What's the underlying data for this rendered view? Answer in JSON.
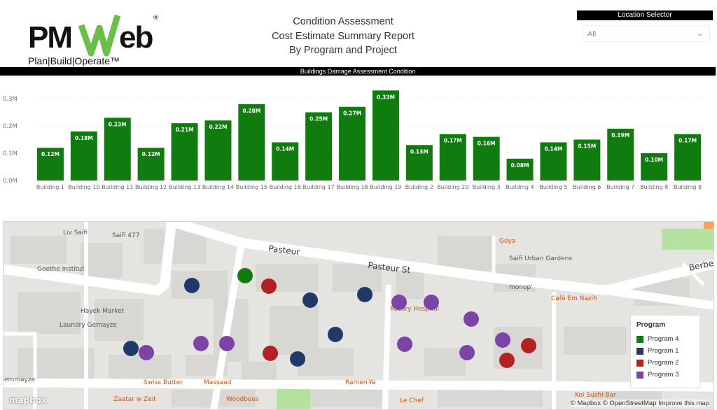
{
  "header": {
    "logo_text": "PMWeb",
    "logo_tagline": "Plan|Build|Operate™",
    "title_lines": [
      "Condition Assessment",
      "Cost Estimate Summary Report",
      "By Program and Project"
    ]
  },
  "location_selector": {
    "label": "Location Selector",
    "value": "All"
  },
  "banner": "Buildings Damage Assessment Condition",
  "chart_data": {
    "type": "bar",
    "categories": [
      "Building 1",
      "Building 10",
      "Building 11",
      "Building 12",
      "Building 13",
      "Building 14",
      "Building 15",
      "Building 16",
      "Building 17",
      "Building 18",
      "Building 19",
      "Building 2",
      "Building 20",
      "Building 3",
      "Building 4",
      "Building 5",
      "Building 6",
      "Building 7",
      "Building 8",
      "Building 9"
    ],
    "values": [
      0.12,
      0.18,
      0.23,
      0.12,
      0.21,
      0.22,
      0.28,
      0.14,
      0.25,
      0.27,
      0.33,
      0.13,
      0.17,
      0.16,
      0.08,
      0.14,
      0.15,
      0.19,
      0.1,
      0.17
    ],
    "data_labels": [
      "0.12M",
      "0.18M",
      "0.23M",
      "0.12M",
      "0.21M",
      "0.22M",
      "0.28M",
      "0.14M",
      "0.25M",
      "0.27M",
      "0.33M",
      "0.13M",
      "0.17M",
      "0.16M",
      "0.08M",
      "0.14M",
      "0.15M",
      "0.19M",
      "0.10M",
      "0.17M"
    ],
    "yticks": [
      "0.0M",
      "0.1M",
      "0.2M",
      "0.3M"
    ],
    "ylim": [
      0,
      0.3
    ],
    "unit": "M",
    "grid": true,
    "color": "#107c10"
  },
  "map": {
    "labels": [
      {
        "text": "Liv Saifi",
        "type": "poi"
      },
      {
        "text": "Saifi 477",
        "type": "poi"
      },
      {
        "text": "Goethe Institut",
        "type": "poi"
      },
      {
        "text": "Hayek Market",
        "type": "poi"
      },
      {
        "text": "Laundry Gemayze",
        "type": "poi"
      },
      {
        "text": "Gemmayze",
        "type": "poi"
      },
      {
        "text": "Pasteur",
        "type": "street"
      },
      {
        "text": "Pasteur St",
        "type": "street"
      },
      {
        "text": "Berberi",
        "type": "street"
      },
      {
        "text": "Goya",
        "type": "food"
      },
      {
        "text": "Saifi Urban Gardens",
        "type": "poi"
      },
      {
        "text": "monop'",
        "type": "poi"
      },
      {
        "text": "Café Em Nazih",
        "type": "food"
      },
      {
        "text": "Rosary Hospital",
        "type": "hospital"
      },
      {
        "text": "Swiss Butter",
        "type": "food"
      },
      {
        "text": "Massaad",
        "type": "food"
      },
      {
        "text": "Ramen-Ya",
        "type": "food"
      },
      {
        "text": "Zaatar w Zeit",
        "type": "food"
      },
      {
        "text": "Woodbees",
        "type": "food"
      },
      {
        "text": "Le Chef",
        "type": "food"
      },
      {
        "text": "Koi Sushi Bar",
        "type": "food"
      }
    ],
    "points": [
      {
        "program": "Program 4"
      },
      {
        "program": "Program 1"
      },
      {
        "program": "Program 2"
      },
      {
        "program": "Program 1"
      },
      {
        "program": "Program 1"
      },
      {
        "program": "Program 3"
      },
      {
        "program": "Program 3"
      },
      {
        "program": "Program 3"
      },
      {
        "program": "Program 1"
      },
      {
        "program": "Program 1"
      },
      {
        "program": "Program 3"
      },
      {
        "program": "Program 3"
      },
      {
        "program": "Program 3"
      },
      {
        "program": "Program 2"
      },
      {
        "program": "Program 1"
      },
      {
        "program": "Program 3"
      },
      {
        "program": "Program 3"
      },
      {
        "program": "Program 3"
      },
      {
        "program": "Program 2"
      },
      {
        "program": "Program 2"
      }
    ],
    "legend": {
      "title": "Program",
      "items": [
        {
          "label": "Program 4",
          "color": "#107c10"
        },
        {
          "label": "Program 1",
          "color": "#1f3a68"
        },
        {
          "label": "Program 2",
          "color": "#b22222"
        },
        {
          "label": "Program 3",
          "color": "#7b45a6"
        }
      ]
    },
    "attribution": "© Mapbox © OpenStreetMap  Improve this map",
    "mapbox_logo": "mapbox"
  }
}
